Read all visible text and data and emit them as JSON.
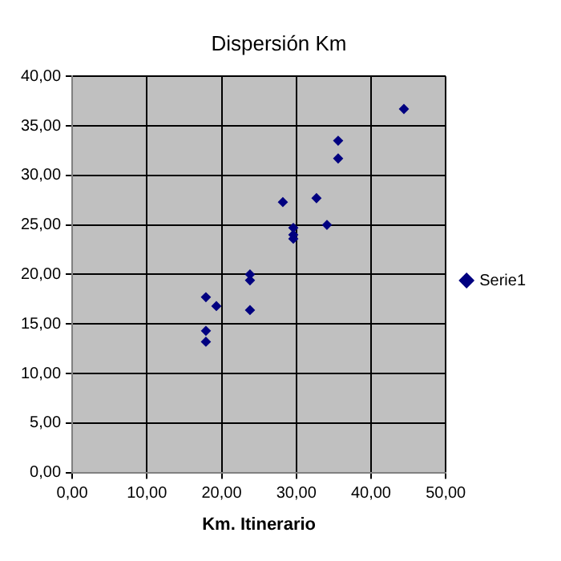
{
  "chart_data": {
    "type": "scatter",
    "title": "Dispersión Km",
    "xlabel": "Km. Itinerario",
    "series": [
      {
        "name": "Serie1",
        "color": "#000080",
        "x": [
          17.9,
          19.3,
          17.9,
          17.9,
          23.8,
          23.8,
          23.8,
          44.4,
          35.6,
          35.6,
          28.2,
          32.7,
          34.1,
          29.6,
          29.6,
          29.6
        ],
        "values": [
          17.7,
          16.8,
          14.3,
          13.2,
          20.0,
          19.4,
          16.4,
          36.7,
          33.5,
          31.7,
          27.3,
          27.7,
          25.0,
          24.7,
          24.0,
          23.6
        ]
      }
    ],
    "xlim": [
      0,
      50
    ],
    "xticks": [
      {
        "value": 0,
        "label": "0,00"
      },
      {
        "value": 10,
        "label": "10,00"
      },
      {
        "value": 20,
        "label": "20,00"
      },
      {
        "value": 30,
        "label": "30,00"
      },
      {
        "value": 40,
        "label": "40,00"
      },
      {
        "value": 50,
        "label": "50,00"
      }
    ],
    "ylim": [
      0,
      40
    ],
    "yticks": [
      {
        "value": 0,
        "label": "0,00"
      },
      {
        "value": 5,
        "label": "5,00"
      },
      {
        "value": 10,
        "label": "10,00"
      },
      {
        "value": 15,
        "label": "15,00"
      },
      {
        "value": 20,
        "label": "20,00"
      },
      {
        "value": 25,
        "label": "25,00"
      },
      {
        "value": 30,
        "label": "30,00"
      },
      {
        "value": 35,
        "label": "35,00"
      },
      {
        "value": 40,
        "label": "40,00"
      }
    ],
    "grid": true,
    "legend": "right",
    "marker": "diamond"
  }
}
